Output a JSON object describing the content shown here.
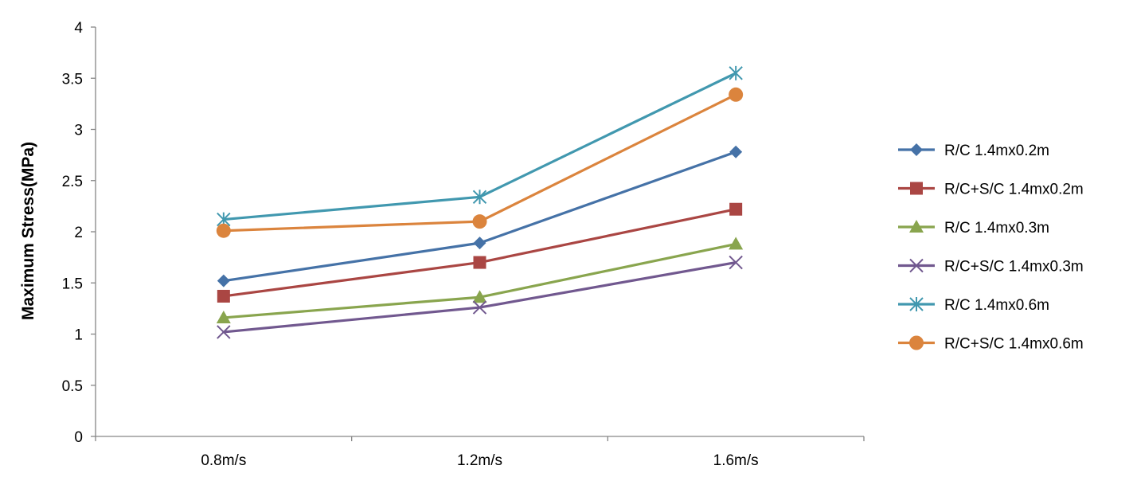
{
  "chart_data": {
    "type": "line",
    "title": "",
    "xlabel": "",
    "ylabel": "Maximum Stress(MPa)",
    "categories": [
      "0.8m/s",
      "1.2m/s",
      "1.6m/s"
    ],
    "ylim": [
      0,
      4
    ],
    "yticks": [
      0,
      0.5,
      1,
      1.5,
      2,
      2.5,
      3,
      3.5,
      4
    ],
    "ytick_labels": [
      "0",
      "0.5",
      "1",
      "1.5",
      "2",
      "2.5",
      "3",
      "3.5",
      "4"
    ],
    "grid": false,
    "legend_position": "right",
    "series": [
      {
        "name": "R/C 1.4mx0.2m",
        "values": [
          1.52,
          1.89,
          2.78
        ],
        "color": "#4572A7",
        "marker": "diamond"
      },
      {
        "name": "R/C+S/C 1.4mx0.2m",
        "values": [
          1.37,
          1.7,
          2.22
        ],
        "color": "#AA4643",
        "marker": "square"
      },
      {
        "name": "R/C 1.4mx0.3m",
        "values": [
          1.16,
          1.36,
          1.88
        ],
        "color": "#89A54E",
        "marker": "triangle"
      },
      {
        "name": "R/C+S/C 1.4mx0.3m",
        "values": [
          1.02,
          1.26,
          1.7
        ],
        "color": "#71588F",
        "marker": "x"
      },
      {
        "name": "R/C 1.4mx0.6m",
        "values": [
          2.12,
          2.34,
          3.55
        ],
        "color": "#4198AF",
        "marker": "star"
      },
      {
        "name": "R/C+S/C 1.4mx0.6m",
        "values": [
          2.01,
          2.1,
          3.34
        ],
        "color": "#DB843D",
        "marker": "circle"
      }
    ]
  }
}
